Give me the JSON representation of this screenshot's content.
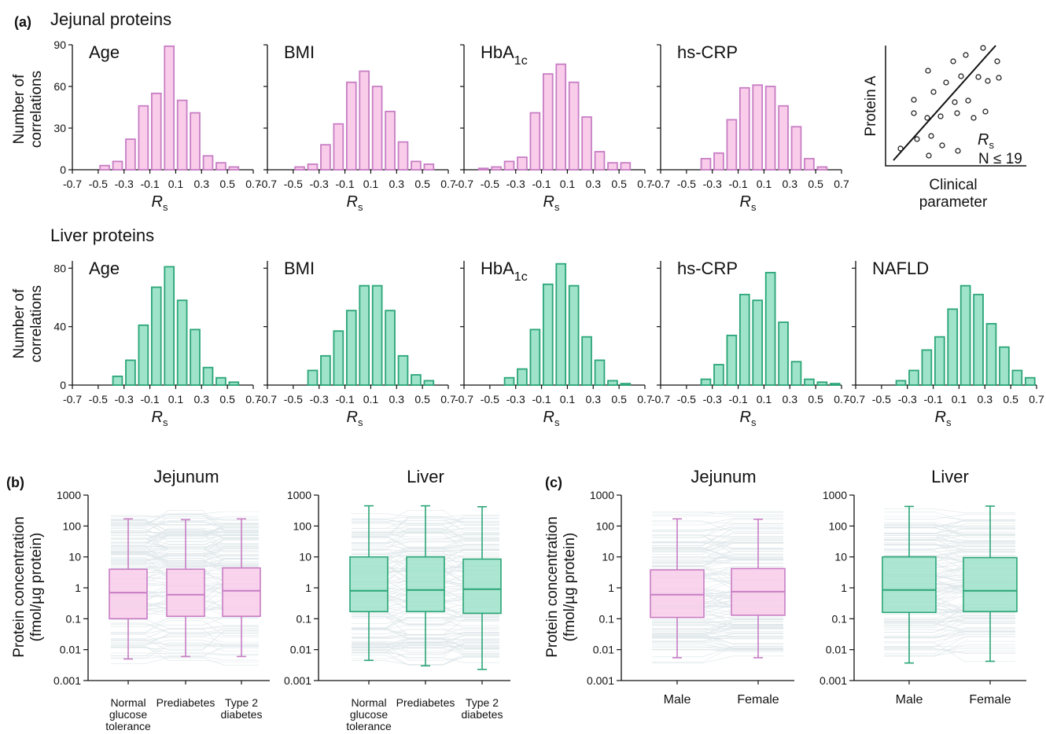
{
  "panel_labels": {
    "a": "(a)",
    "b": "(b)",
    "c": "(c)"
  },
  "section_titles": {
    "jejunal": "Jejunal proteins",
    "liver": "Liver proteins"
  },
  "hist_ylabel": [
    "Number of",
    "correlations"
  ],
  "hist_xlabel": {
    "main": "R",
    "sub": "s"
  },
  "box_ylabel": [
    "Protein concentration",
    "(fmol/µg protein)"
  ],
  "schematic": {
    "ylabel": "Protein A",
    "xlabel": [
      "Clinical",
      "parameter"
    ],
    "rs_main": "R",
    "rs_sub": "s",
    "n_label": "N ≤ 19"
  },
  "colors": {
    "pink_fill": "#f9cdea",
    "pink_stroke": "#c77dc4",
    "green_fill": "#9fe3cb",
    "green_stroke": "#2aa577",
    "spaghetti": "#c3d2d8"
  },
  "chart_data": [
    {
      "type": "bar",
      "id": "jejunal-hist",
      "ylim": [
        0,
        90
      ],
      "yticks": [
        0,
        30,
        60,
        90
      ],
      "xlim": [
        -0.7,
        0.7
      ],
      "xticks": [
        "-0.7",
        "-0.5",
        "-0.3",
        "-0.1",
        "0.1",
        "0.3",
        "0.5",
        "0.7"
      ],
      "bin_centers": [
        -0.65,
        -0.55,
        -0.45,
        -0.35,
        -0.25,
        -0.15,
        -0.05,
        0.05,
        0.15,
        0.25,
        0.35,
        0.45,
        0.55,
        0.65
      ],
      "series": [
        {
          "title": "Age",
          "values": [
            0,
            0,
            3,
            6,
            22,
            46,
            55,
            89,
            50,
            41,
            10,
            5,
            2,
            0
          ]
        },
        {
          "title": "BMI",
          "values": [
            0,
            0,
            2,
            4,
            18,
            33,
            63,
            71,
            60,
            42,
            20,
            6,
            4,
            0
          ]
        },
        {
          "title": "HbA",
          "title_sub": "1c",
          "values": [
            0,
            1,
            2,
            6,
            9,
            41,
            69,
            76,
            63,
            38,
            13,
            5,
            5,
            0
          ]
        },
        {
          "title": "hs-CRP",
          "values": [
            0,
            0,
            0,
            8,
            12,
            36,
            59,
            61,
            60,
            46,
            31,
            8,
            2,
            0
          ]
        }
      ]
    },
    {
      "type": "bar",
      "id": "liver-hist",
      "ylim": [
        0,
        85
      ],
      "yticks": [
        0,
        40,
        80
      ],
      "xlim": [
        -0.7,
        0.7
      ],
      "xticks": [
        "-0.7",
        "-0.5",
        "-0.3",
        "-0.1",
        "0.1",
        "0.3",
        "0.5",
        "0.7"
      ],
      "bin_centers": [
        -0.65,
        -0.55,
        -0.45,
        -0.35,
        -0.25,
        -0.15,
        -0.05,
        0.05,
        0.15,
        0.25,
        0.35,
        0.45,
        0.55,
        0.65
      ],
      "series": [
        {
          "title": "Age",
          "values": [
            0,
            0,
            0,
            6,
            17,
            41,
            67,
            81,
            58,
            38,
            12,
            5,
            2,
            0
          ]
        },
        {
          "title": "BMI",
          "values": [
            0,
            0,
            0,
            10,
            20,
            37,
            51,
            68,
            68,
            51,
            20,
            7,
            3,
            0
          ]
        },
        {
          "title": "HbA",
          "title_sub": "1c",
          "values": [
            0,
            0,
            0,
            5,
            11,
            38,
            69,
            83,
            68,
            33,
            17,
            3,
            1,
            0
          ]
        },
        {
          "title": "hs-CRP",
          "values": [
            0,
            0,
            0,
            4,
            14,
            34,
            62,
            58,
            77,
            43,
            16,
            4,
            2,
            1
          ]
        },
        {
          "title": "NAFLD",
          "values": [
            0,
            0,
            0,
            3,
            10,
            24,
            33,
            52,
            68,
            62,
            42,
            26,
            10,
            5
          ]
        }
      ]
    },
    {
      "type": "box",
      "id": "box-b-jejunum",
      "title": "Jejunum",
      "scale": "log",
      "ylim": [
        0.001,
        1000
      ],
      "yticks": [
        "1000",
        "100",
        "10",
        "1",
        "0.1",
        "0.01",
        "0.001"
      ],
      "groups": [
        {
          "label": [
            "Normal",
            "glucose",
            "tolerance"
          ],
          "whisker_low": 0.005,
          "q1": 0.1,
          "median": 0.7,
          "q3": 4.0,
          "whisker_high": 170
        },
        {
          "label": [
            "Prediabetes"
          ],
          "whisker_low": 0.006,
          "q1": 0.12,
          "median": 0.6,
          "q3": 4.0,
          "whisker_high": 160
        },
        {
          "label": [
            "Type 2",
            "diabetes"
          ],
          "whisker_low": 0.006,
          "q1": 0.12,
          "median": 0.8,
          "q3": 4.4,
          "whisker_high": 170
        }
      ]
    },
    {
      "type": "box",
      "id": "box-b-liver",
      "title": "Liver",
      "scale": "log",
      "ylim": [
        0.001,
        1000
      ],
      "yticks": [
        "1000",
        "100",
        "10",
        "1",
        "0.1",
        "0.01",
        "0.001"
      ],
      "groups": [
        {
          "label": [
            "Normal",
            "glucose",
            "tolerance"
          ],
          "whisker_low": 0.0045,
          "q1": 0.17,
          "median": 0.8,
          "q3": 10,
          "whisker_high": 450
        },
        {
          "label": [
            "Prediabetes"
          ],
          "whisker_low": 0.003,
          "q1": 0.17,
          "median": 0.85,
          "q3": 10,
          "whisker_high": 450
        },
        {
          "label": [
            "Type 2",
            "diabetes"
          ],
          "whisker_low": 0.0023,
          "q1": 0.15,
          "median": 0.9,
          "q3": 8.5,
          "whisker_high": 420
        }
      ]
    },
    {
      "type": "box",
      "id": "box-c-jejunum",
      "title": "Jejunum",
      "scale": "log",
      "ylim": [
        0.001,
        1000
      ],
      "yticks": [
        "1000",
        "100",
        "10",
        "1",
        "0.1",
        "0.01",
        "0.001"
      ],
      "groups": [
        {
          "label": [
            "Male"
          ],
          "whisker_low": 0.0055,
          "q1": 0.11,
          "median": 0.6,
          "q3": 3.8,
          "whisker_high": 170
        },
        {
          "label": [
            "Female"
          ],
          "whisker_low": 0.0055,
          "q1": 0.13,
          "median": 0.75,
          "q3": 4.2,
          "whisker_high": 165
        }
      ]
    },
    {
      "type": "box",
      "id": "box-c-liver",
      "title": "Liver",
      "scale": "log",
      "ylim": [
        0.001,
        1000
      ],
      "yticks": [
        "1000",
        "100",
        "10",
        "1",
        "0.1",
        "0.01",
        "0.001"
      ],
      "groups": [
        {
          "label": [
            "Male"
          ],
          "whisker_low": 0.0037,
          "q1": 0.16,
          "median": 0.85,
          "q3": 10,
          "whisker_high": 430
        },
        {
          "label": [
            "Female"
          ],
          "whisker_low": 0.0042,
          "q1": 0.17,
          "median": 0.8,
          "q3": 9.5,
          "whisker_high": 440
        }
      ]
    }
  ]
}
